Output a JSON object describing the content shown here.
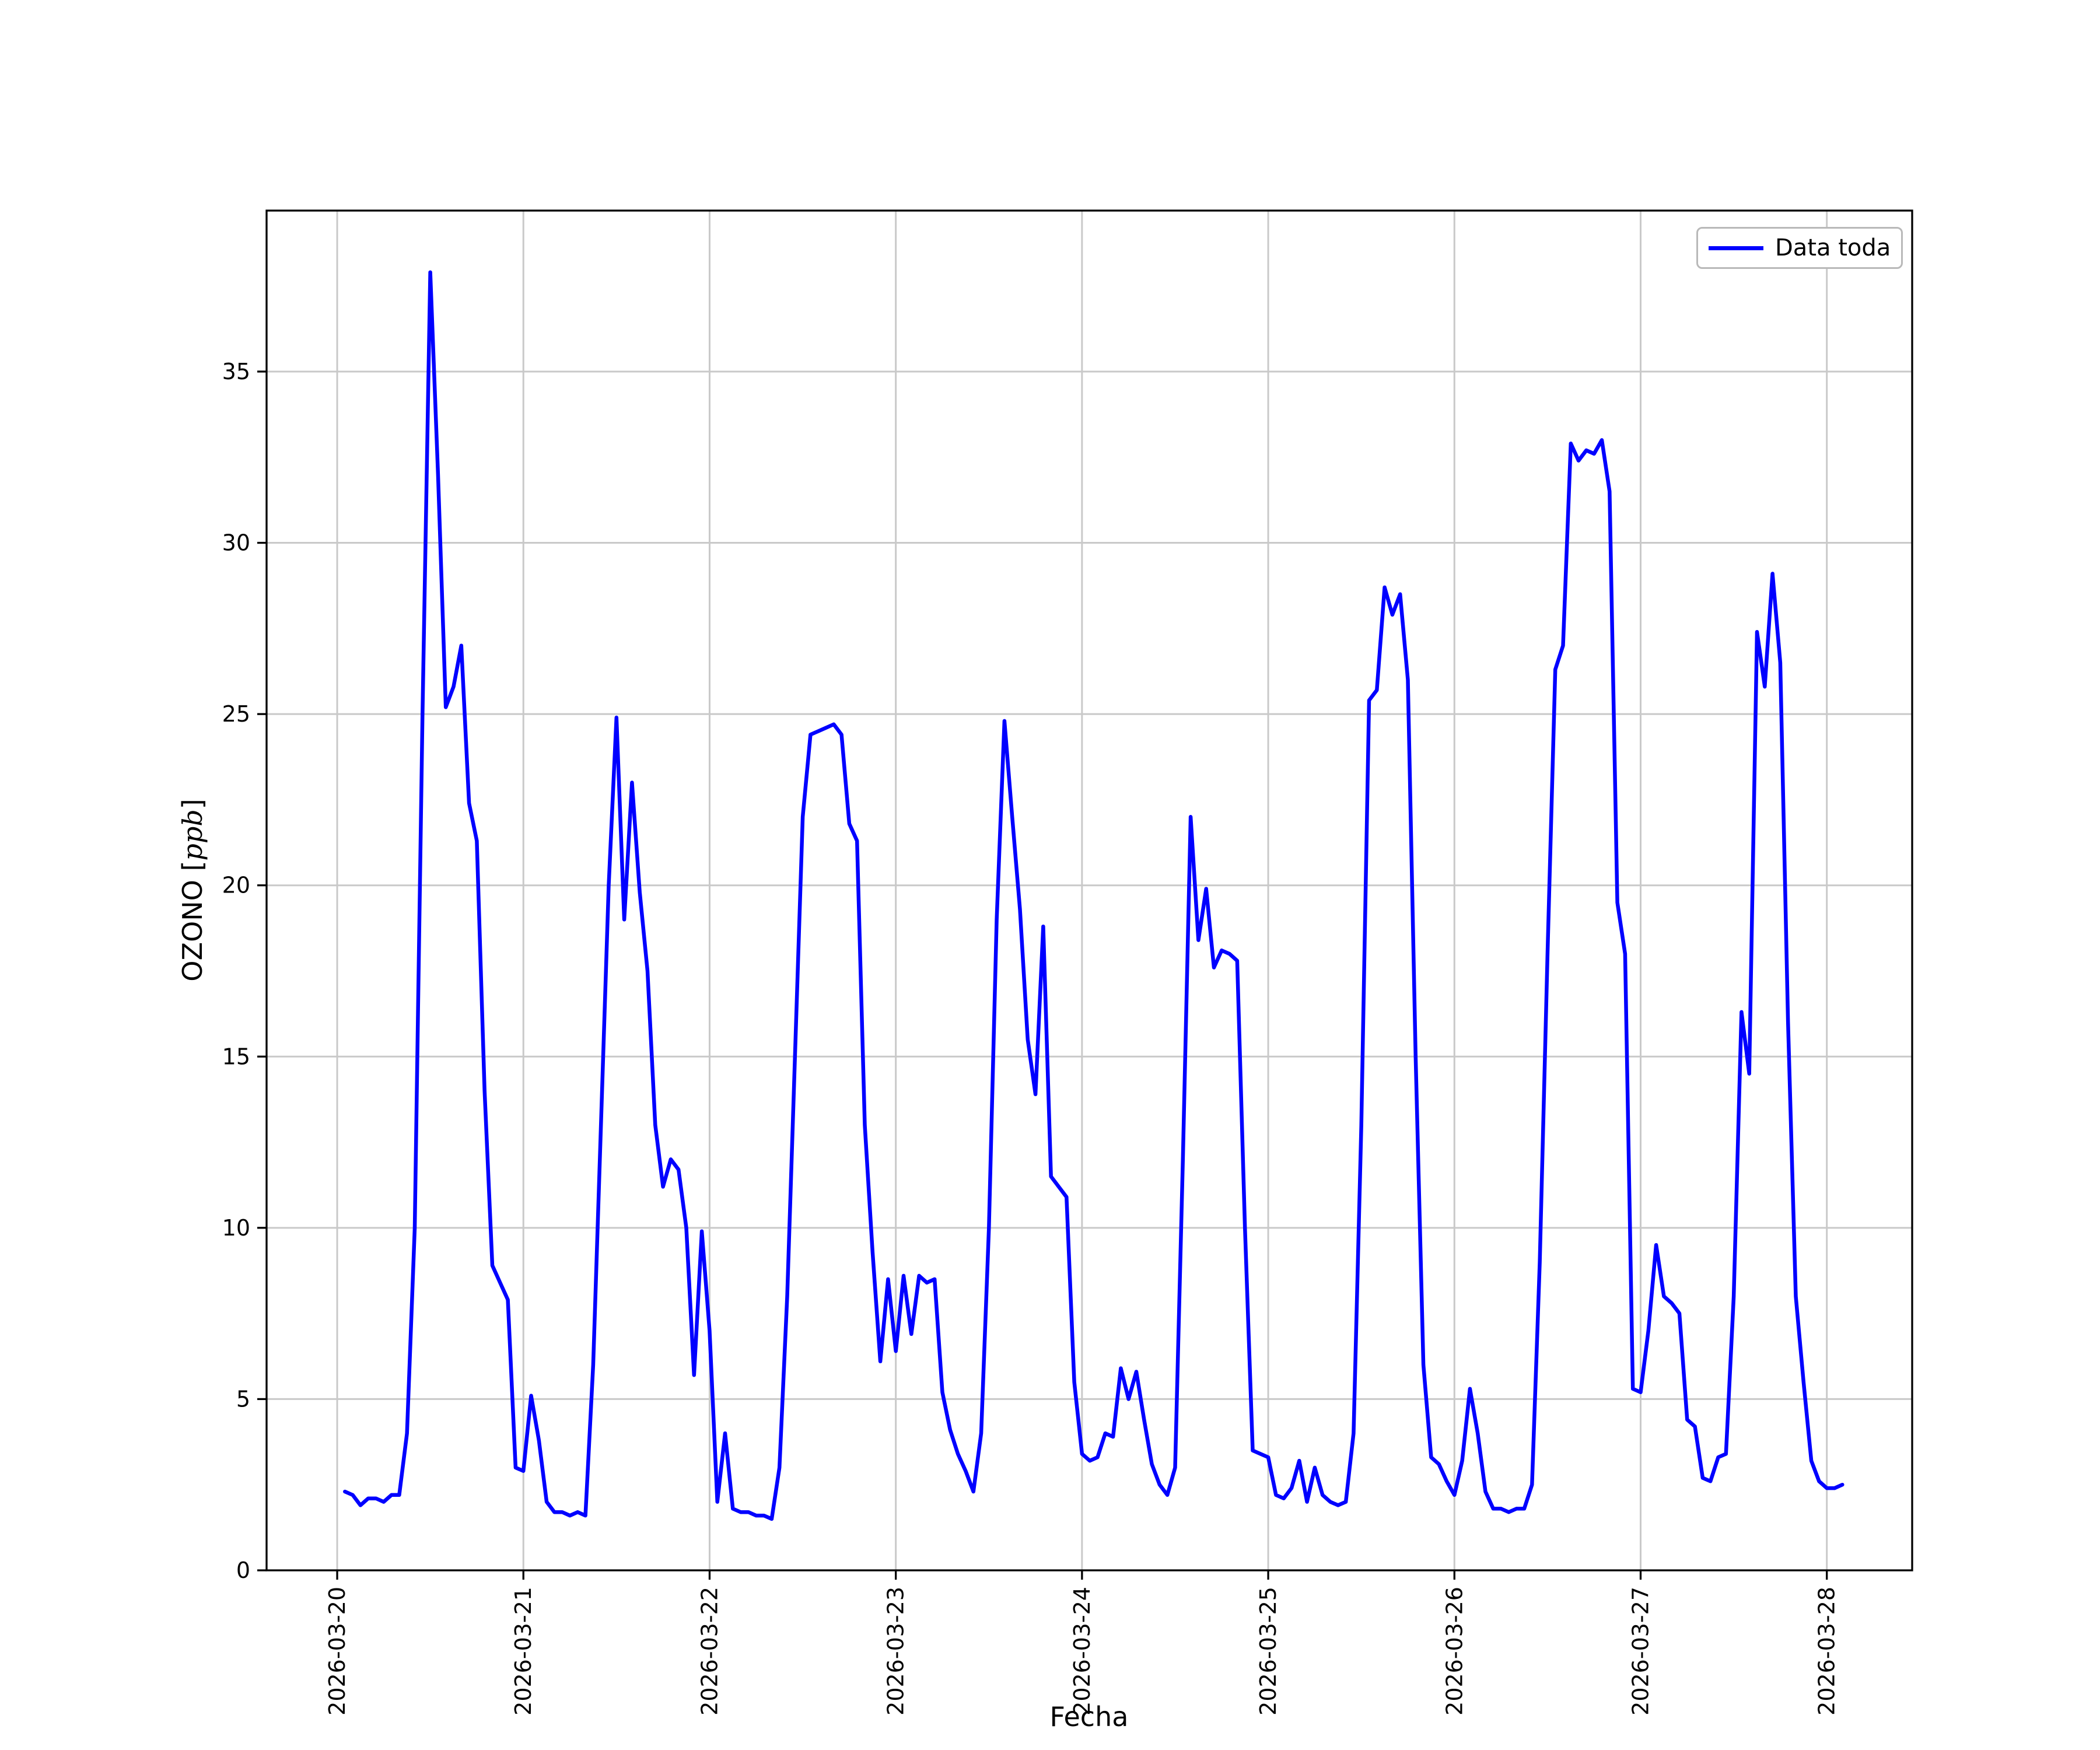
{
  "figure": {
    "background": "#ffffff",
    "border_color": "#000000"
  },
  "chart_data": {
    "type": "line",
    "title": "",
    "xlabel": "Fecha",
    "ylabel": "OZONO [ppb]",
    "ylabel_prefix": "OZONO [",
    "ylabel_math": "ppb",
    "ylabel_suffix": "]",
    "legend_label": "Data toda",
    "legend_position": "upper right",
    "grid": true,
    "grid_color": "#c9c9c9",
    "x_tick_labels": [
      "2026-03-20",
      "2026-03-21",
      "2026-03-22",
      "2026-03-23",
      "2026-03-24",
      "2026-03-25",
      "2026-03-26",
      "2026-03-27",
      "2026-03-28"
    ],
    "x_tick_hours": [
      0,
      24,
      48,
      72,
      96,
      120,
      144,
      168,
      192
    ],
    "y_ticks": [
      0,
      5,
      10,
      15,
      20,
      25,
      30,
      35
    ],
    "xlim_hours": [
      -9.1,
      203
    ],
    "ylim": [
      0,
      39.7
    ],
    "x_unit_note": "hours after 2026-03-20 00:00",
    "series": [
      {
        "name": "Data toda",
        "color": "#0000ff",
        "points": [
          [
            1,
            2.3
          ],
          [
            2,
            2.2
          ],
          [
            3,
            1.9
          ],
          [
            4,
            2.1
          ],
          [
            5,
            2.1
          ],
          [
            6,
            2.0
          ],
          [
            7,
            2.2
          ],
          [
            8,
            2.2
          ],
          [
            9,
            4.0
          ],
          [
            10,
            10.0
          ],
          [
            11,
            25.0
          ],
          [
            12,
            37.9
          ],
          [
            13,
            32.0
          ],
          [
            14,
            25.2
          ],
          [
            15,
            25.8
          ],
          [
            16,
            27.0
          ],
          [
            17,
            22.4
          ],
          [
            18,
            21.3
          ],
          [
            19,
            14.0
          ],
          [
            20,
            8.9
          ],
          [
            21,
            8.4
          ],
          [
            22,
            7.9
          ],
          [
            23,
            3.0
          ],
          [
            24,
            2.9
          ],
          [
            25,
            5.1
          ],
          [
            26,
            3.8
          ],
          [
            27,
            2.0
          ],
          [
            28,
            1.7
          ],
          [
            29,
            1.7
          ],
          [
            30,
            1.6
          ],
          [
            31,
            1.7
          ],
          [
            32,
            1.6
          ],
          [
            33,
            6.0
          ],
          [
            34,
            13.0
          ],
          [
            35,
            20.0
          ],
          [
            36,
            24.9
          ],
          [
            37,
            19.0
          ],
          [
            38,
            23.0
          ],
          [
            39,
            19.8
          ],
          [
            40,
            17.5
          ],
          [
            41,
            13.0
          ],
          [
            42,
            11.2
          ],
          [
            43,
            12.0
          ],
          [
            44,
            11.7
          ],
          [
            45,
            10.0
          ],
          [
            46,
            5.7
          ],
          [
            47,
            9.9
          ],
          [
            48,
            7.0
          ],
          [
            49,
            2.0
          ],
          [
            50,
            4.0
          ],
          [
            51,
            1.8
          ],
          [
            52,
            1.7
          ],
          [
            53,
            1.7
          ],
          [
            54,
            1.6
          ],
          [
            55,
            1.6
          ],
          [
            56,
            1.5
          ],
          [
            57,
            3.0
          ],
          [
            58,
            8.0
          ],
          [
            59,
            15.0
          ],
          [
            60,
            22.0
          ],
          [
            61,
            24.4
          ],
          [
            62,
            24.5
          ],
          [
            63,
            24.6
          ],
          [
            64,
            24.7
          ],
          [
            65,
            24.4
          ],
          [
            66,
            21.8
          ],
          [
            67,
            21.3
          ],
          [
            68,
            13.0
          ],
          [
            69,
            9.3
          ],
          [
            70,
            6.1
          ],
          [
            71,
            8.5
          ],
          [
            72,
            6.4
          ],
          [
            73,
            8.6
          ],
          [
            74,
            6.9
          ],
          [
            75,
            8.6
          ],
          [
            76,
            8.4
          ],
          [
            77,
            8.5
          ],
          [
            78,
            5.2
          ],
          [
            79,
            4.1
          ],
          [
            80,
            3.4
          ],
          [
            81,
            2.9
          ],
          [
            82,
            2.3
          ],
          [
            83,
            4.0
          ],
          [
            84,
            10.0
          ],
          [
            85,
            19.0
          ],
          [
            86,
            24.8
          ],
          [
            87,
            22.0
          ],
          [
            88,
            19.3
          ],
          [
            89,
            15.5
          ],
          [
            90,
            13.9
          ],
          [
            91,
            18.8
          ],
          [
            92,
            11.5
          ],
          [
            93,
            11.2
          ],
          [
            94,
            10.9
          ],
          [
            95,
            5.5
          ],
          [
            96,
            3.4
          ],
          [
            97,
            3.2
          ],
          [
            98,
            3.3
          ],
          [
            99,
            4.0
          ],
          [
            100,
            3.9
          ],
          [
            101,
            5.9
          ],
          [
            102,
            5.0
          ],
          [
            103,
            5.8
          ],
          [
            104,
            4.4
          ],
          [
            105,
            3.1
          ],
          [
            106,
            2.5
          ],
          [
            107,
            2.2
          ],
          [
            108,
            3.0
          ],
          [
            109,
            12.0
          ],
          [
            110,
            22.0
          ],
          [
            111,
            18.4
          ],
          [
            112,
            19.9
          ],
          [
            113,
            17.6
          ],
          [
            114,
            18.1
          ],
          [
            115,
            18.0
          ],
          [
            116,
            17.8
          ],
          [
            117,
            10.0
          ],
          [
            118,
            3.5
          ],
          [
            119,
            3.4
          ],
          [
            120,
            3.3
          ],
          [
            121,
            2.2
          ],
          [
            122,
            2.1
          ],
          [
            123,
            2.4
          ],
          [
            124,
            3.2
          ],
          [
            125,
            2.0
          ],
          [
            126,
            3.0
          ],
          [
            127,
            2.2
          ],
          [
            128,
            2.0
          ],
          [
            129,
            1.9
          ],
          [
            130,
            2.0
          ],
          [
            131,
            4.0
          ],
          [
            132,
            13.0
          ],
          [
            133,
            25.4
          ],
          [
            134,
            25.7
          ],
          [
            135,
            28.7
          ],
          [
            136,
            27.9
          ],
          [
            137,
            28.5
          ],
          [
            138,
            26.0
          ],
          [
            139,
            15.0
          ],
          [
            140,
            6.0
          ],
          [
            141,
            3.3
          ],
          [
            142,
            3.1
          ],
          [
            143,
            2.6
          ],
          [
            144,
            2.2
          ],
          [
            145,
            3.2
          ],
          [
            146,
            5.3
          ],
          [
            147,
            4.0
          ],
          [
            148,
            2.3
          ],
          [
            149,
            1.8
          ],
          [
            150,
            1.8
          ],
          [
            151,
            1.7
          ],
          [
            152,
            1.8
          ],
          [
            153,
            1.8
          ],
          [
            154,
            2.5
          ],
          [
            155,
            9.0
          ],
          [
            156,
            18.0
          ],
          [
            157,
            26.3
          ],
          [
            158,
            27.0
          ],
          [
            159,
            32.9
          ],
          [
            160,
            32.4
          ],
          [
            161,
            32.7
          ],
          [
            162,
            32.6
          ],
          [
            163,
            33.0
          ],
          [
            164,
            31.5
          ],
          [
            165,
            19.5
          ],
          [
            166,
            18.0
          ],
          [
            167,
            5.3
          ],
          [
            168,
            5.2
          ],
          [
            169,
            7.0
          ],
          [
            170,
            9.5
          ],
          [
            171,
            8.0
          ],
          [
            172,
            7.8
          ],
          [
            173,
            7.5
          ],
          [
            174,
            4.4
          ],
          [
            175,
            4.2
          ],
          [
            176,
            2.7
          ],
          [
            177,
            2.6
          ],
          [
            178,
            3.3
          ],
          [
            179,
            3.4
          ],
          [
            180,
            8.0
          ],
          [
            181,
            16.3
          ],
          [
            182,
            14.5
          ],
          [
            183,
            27.4
          ],
          [
            184,
            25.8
          ],
          [
            185,
            29.1
          ],
          [
            186,
            26.5
          ],
          [
            187,
            16.0
          ],
          [
            188,
            8.0
          ],
          [
            189,
            5.5
          ],
          [
            190,
            3.2
          ],
          [
            191,
            2.6
          ],
          [
            192,
            2.4
          ],
          [
            193,
            2.4
          ],
          [
            194,
            2.5
          ]
        ]
      }
    ]
  }
}
